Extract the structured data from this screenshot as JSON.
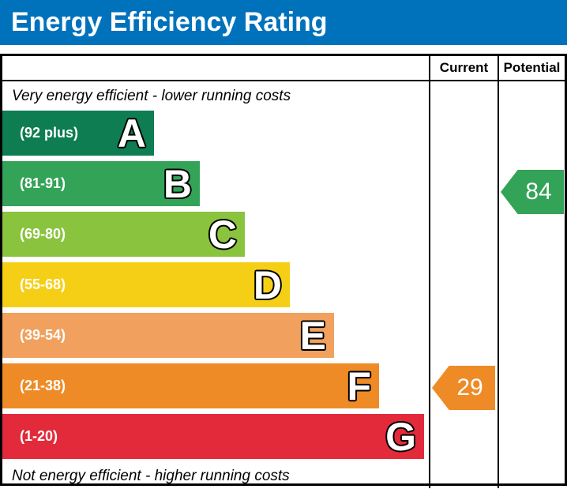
{
  "header": {
    "title": "Energy Efficiency Rating",
    "bg_color": "#0072bc"
  },
  "table": {
    "columns": {
      "current": "Current",
      "potential": "Potential"
    },
    "top_note": "Very energy efficient - lower running costs",
    "bottom_note": "Not energy efficient - higher running costs",
    "bands": [
      {
        "letter": "A",
        "range": "(92 plus)",
        "color": "#0e7d52"
      },
      {
        "letter": "B",
        "range": "(81-91)",
        "color": "#33a357"
      },
      {
        "letter": "C",
        "range": "(69-80)",
        "color": "#8ac33e"
      },
      {
        "letter": "D",
        "range": "(55-68)",
        "color": "#f4cf16"
      },
      {
        "letter": "E",
        "range": "(39-54)",
        "color": "#f1a15d"
      },
      {
        "letter": "F",
        "range": "(21-38)",
        "color": "#ee8b27"
      },
      {
        "letter": "G",
        "range": "(1-20)",
        "color": "#e32a3b"
      }
    ],
    "current": {
      "value": "29",
      "band": "F",
      "color": "#ee8b27"
    },
    "potential": {
      "value": "84",
      "band": "B",
      "color": "#33a357"
    }
  },
  "chart_data": {
    "type": "bar",
    "title": "Energy Efficiency Rating",
    "categories": [
      "A",
      "B",
      "C",
      "D",
      "E",
      "F",
      "G"
    ],
    "band_score_ranges": [
      "92 plus",
      "81-91",
      "69-80",
      "55-68",
      "39-54",
      "21-38",
      "1-20"
    ],
    "band_colors": [
      "#0e7d52",
      "#33a357",
      "#8ac33e",
      "#f4cf16",
      "#f1a15d",
      "#ee8b27",
      "#e32a3b"
    ],
    "bar_relative_widths": [
      192,
      250,
      307,
      364,
      420,
      477,
      534
    ],
    "series": [
      {
        "name": "Current",
        "value": 29,
        "band": "F"
      },
      {
        "name": "Potential",
        "value": 84,
        "band": "B"
      }
    ],
    "top_annotation": "Very energy efficient - lower running costs",
    "bottom_annotation": "Not energy efficient - higher running costs",
    "legend_position": "top-right-columns",
    "grid": false
  }
}
